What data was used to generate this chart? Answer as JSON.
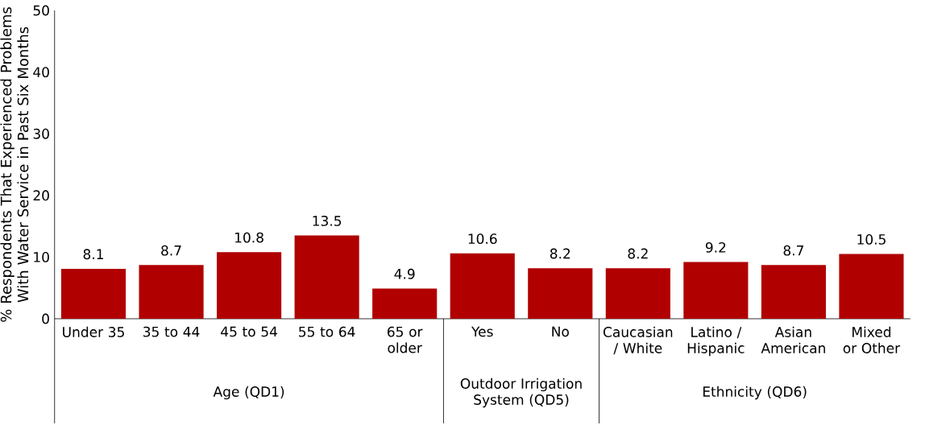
{
  "chart_data": {
    "type": "bar",
    "ylabel": "% Respondents That Experienced Problems With Water Service in Past Six Months",
    "categories": [
      "Under 35",
      "35 to 44",
      "45 to 54",
      "55 to 64",
      "65 or older",
      "Yes",
      "No",
      "Caucasian / White",
      "Latino / Hispanic",
      "Asian American",
      "Mixed or Other"
    ],
    "values": [
      8.1,
      8.7,
      10.8,
      13.5,
      4.9,
      10.6,
      8.2,
      8.2,
      9.2,
      8.7,
      10.5
    ],
    "color": "#b00000",
    "ylim": [
      0,
      50
    ],
    "yticks": [
      0,
      10,
      20,
      30,
      40,
      50
    ],
    "data_labels": true,
    "annotations": [
      "Age (QD1)",
      "Outdoor Irrigation System (QD5)",
      "Ethnicity (QD6)"
    ]
  }
}
